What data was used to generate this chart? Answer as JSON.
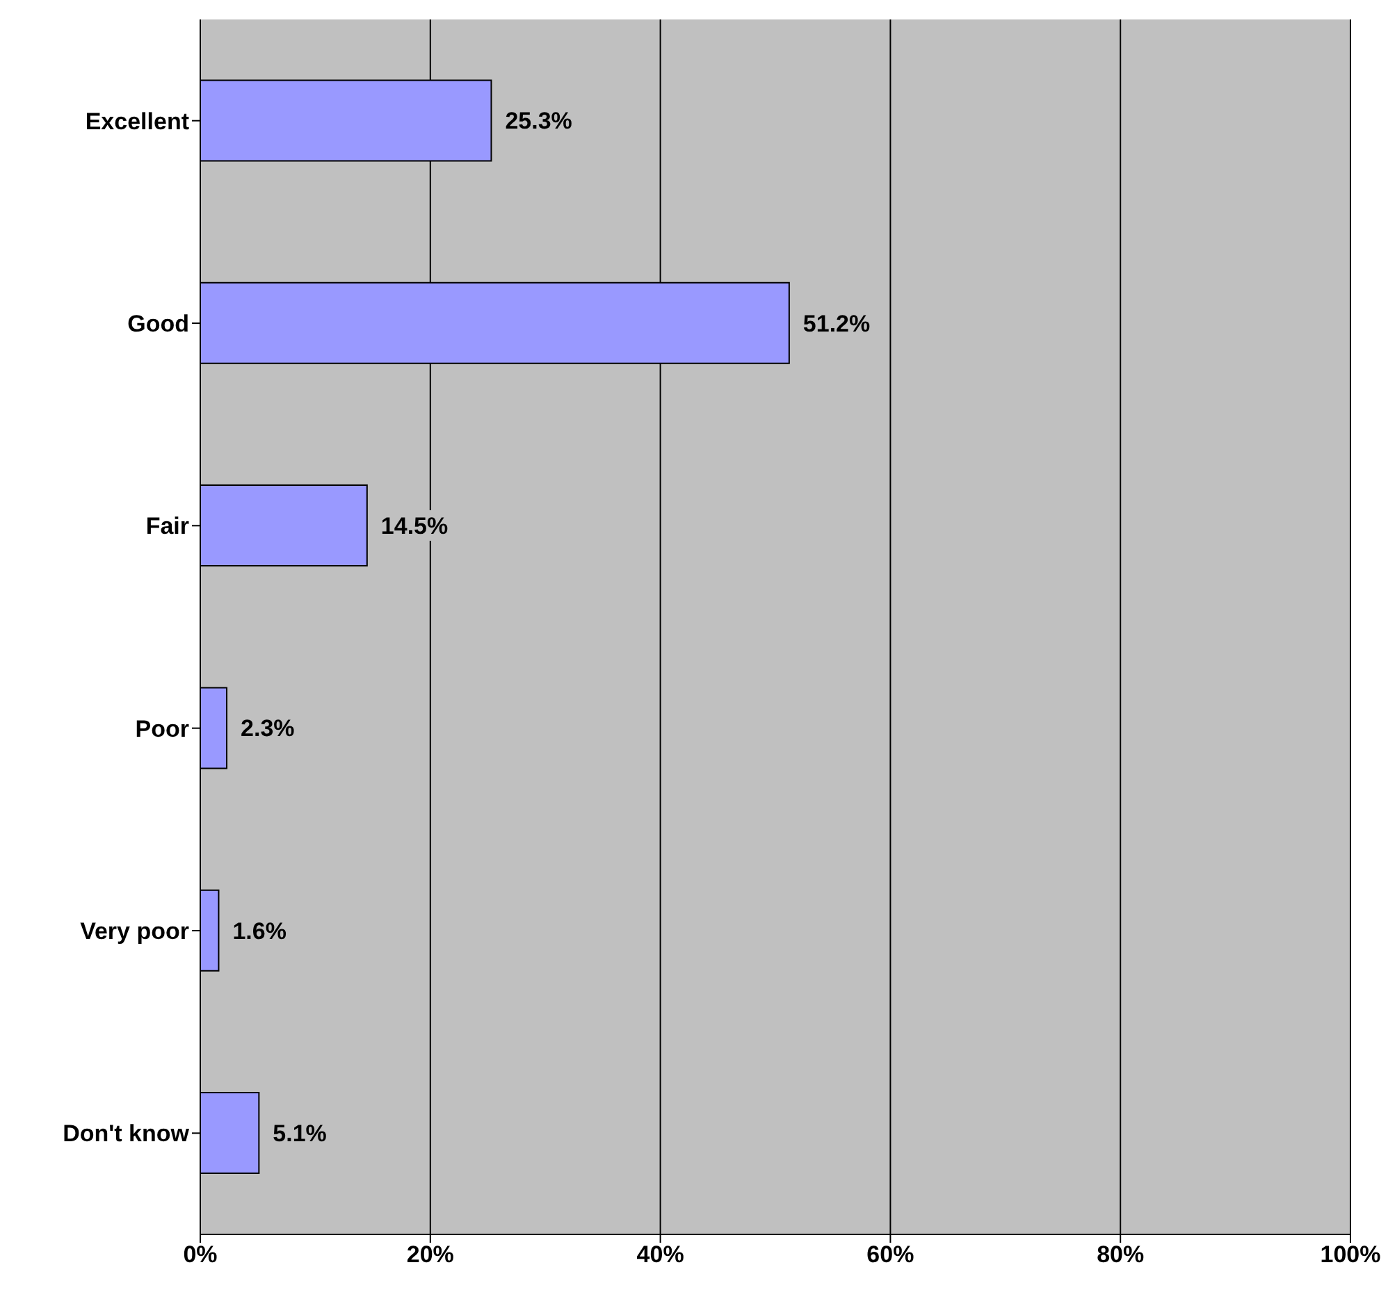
{
  "chart_data": {
    "type": "bar",
    "orientation": "horizontal",
    "categories": [
      "Excellent",
      "Good",
      "Fair",
      "Poor",
      "Very poor",
      "Don't know"
    ],
    "values": [
      25.3,
      51.2,
      14.5,
      2.3,
      1.6,
      5.1
    ],
    "value_labels": [
      "25.3%",
      "51.2%",
      "14.5%",
      "2.3%",
      "1.6%",
      "5.1%"
    ],
    "color": "#9999ff",
    "xlim": [
      0,
      100
    ],
    "xticks": [
      {
        "value": 0,
        "label": "0%"
      },
      {
        "value": 20,
        "label": "20%"
      },
      {
        "value": 40,
        "label": "40%"
      },
      {
        "value": 60,
        "label": "60%"
      },
      {
        "value": 80,
        "label": "80%"
      },
      {
        "value": 100,
        "label": "100%"
      }
    ],
    "grid": "x"
  }
}
